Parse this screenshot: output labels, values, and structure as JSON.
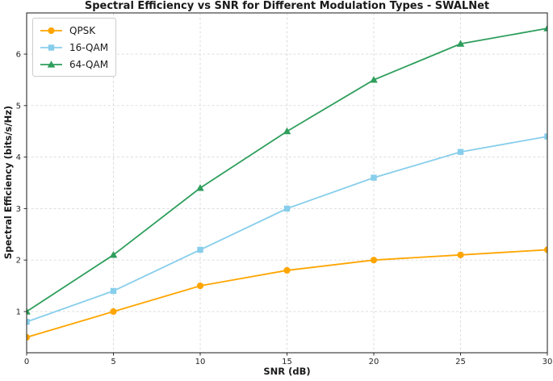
{
  "chart_data": {
    "type": "line",
    "title": "Spectral Efficiency vs SNR for Different Modulation Types - SWALNet",
    "xlabel": "SNR (dB)",
    "ylabel": "Spectral Efficiency (bits/s/Hz)",
    "x": [
      0,
      5,
      10,
      15,
      20,
      25,
      30
    ],
    "series": [
      {
        "name": "QPSK",
        "marker": "circle",
        "color": "#FFA500",
        "values": [
          0.5,
          1.0,
          1.5,
          1.8,
          2.0,
          2.1,
          2.2
        ]
      },
      {
        "name": "16-QAM",
        "marker": "square",
        "color": "#87CEEB",
        "values": [
          0.8,
          1.4,
          2.2,
          3.0,
          3.6,
          4.1,
          4.4
        ]
      },
      {
        "name": "64-QAM",
        "marker": "triangle",
        "color": "#2E9E5C",
        "values": [
          1.0,
          2.1,
          3.4,
          4.5,
          5.5,
          6.2,
          6.5
        ]
      }
    ],
    "xlim": [
      0,
      30
    ],
    "ylim": [
      0.2,
      6.8
    ],
    "xticks": [
      0,
      5,
      10,
      15,
      20,
      25,
      30
    ],
    "yticks": [
      1,
      2,
      3,
      4,
      5,
      6
    ],
    "grid": true,
    "grid_style": "dashed",
    "legend_position": "upper left",
    "colors": {
      "grid": "#d9d9d9",
      "spine": "#1a1a1a",
      "tick_label": "#262626",
      "background": "#ffffff"
    }
  }
}
